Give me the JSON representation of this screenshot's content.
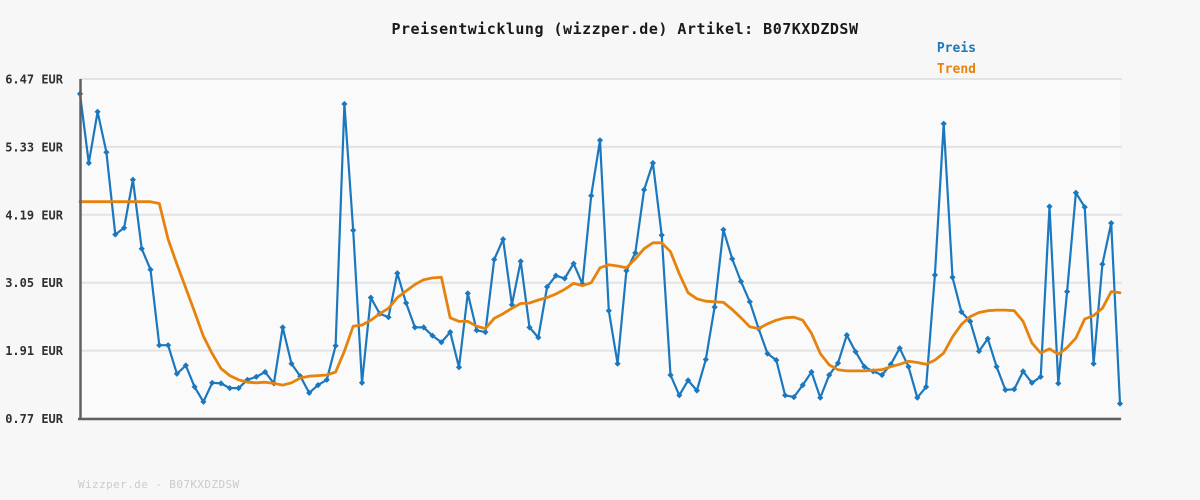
{
  "title": "Preisentwicklung (wizzper.de) Artikel: B07KXDZDSW",
  "watermark": "Wizzper.de - B07KXDZDSW",
  "legend": [
    {
      "label": "Preis",
      "color": "#1b78be"
    },
    {
      "label": "Trend",
      "color": "#e6830e"
    }
  ],
  "colors": {
    "background": "#f7f7f7",
    "plot_background": "#fafafa",
    "gridline": "#e3e3e3",
    "axis": "#606060",
    "price_line": "#1b78be",
    "trend_line": "#e6830e",
    "title_text": "#1a1a1a",
    "tick_text": "#303030",
    "watermark_text": "#cbcbcb"
  },
  "chart_data": {
    "type": "line",
    "title": "Preisentwicklung (wizzper.de) Artikel: B07KXDZDSW",
    "xlabel": "",
    "ylabel": "EUR",
    "grid": true,
    "legend_position": "top-right",
    "x_axis": {
      "tick_labels_visible": false,
      "num_points": 119
    },
    "y_axis": {
      "range": [
        0.77,
        6.47
      ],
      "ticks": [
        {
          "value": 6.47,
          "label": "6.47 EUR"
        },
        {
          "value": 5.33,
          "label": "5.33 EUR"
        },
        {
          "value": 4.19,
          "label": "4.19 EUR"
        },
        {
          "value": 3.05,
          "label": "3.05 EUR"
        },
        {
          "value": 1.91,
          "label": "1.91 EUR"
        },
        {
          "value": 0.77,
          "label": "0.77 EUR"
        }
      ]
    },
    "series": [
      {
        "name": "Preis",
        "color": "#1b78be",
        "marker": "diamond",
        "values": [
          6.22,
          5.06,
          5.92,
          5.24,
          3.86,
          3.97,
          4.78,
          3.62,
          3.27,
          2.0,
          2.0,
          1.52,
          1.66,
          1.3,
          1.05,
          1.37,
          1.36,
          1.28,
          1.28,
          1.42,
          1.47,
          1.55,
          1.36,
          2.3,
          1.69,
          1.48,
          1.2,
          1.33,
          1.42,
          1.99,
          6.05,
          3.93,
          1.37,
          2.8,
          2.53,
          2.47,
          3.21,
          2.71,
          2.3,
          2.3,
          2.16,
          2.05,
          2.22,
          1.63,
          2.87,
          2.25,
          2.22,
          3.44,
          3.78,
          2.68,
          3.41,
          2.3,
          2.13,
          2.98,
          3.17,
          3.12,
          3.37,
          3.03,
          4.51,
          5.44,
          2.58,
          1.69,
          3.25,
          3.55,
          4.61,
          5.06,
          3.85,
          1.5,
          1.16,
          1.41,
          1.24,
          1.76,
          2.64,
          3.94,
          3.45,
          3.07,
          2.73,
          2.28,
          1.86,
          1.75,
          1.16,
          1.13,
          1.33,
          1.55,
          1.12,
          1.5,
          1.7,
          2.17,
          1.89,
          1.64,
          1.56,
          1.5,
          1.68,
          1.95,
          1.64,
          1.12,
          1.3,
          3.18,
          5.72,
          3.14,
          2.56,
          2.4,
          1.9,
          2.11,
          1.64,
          1.25,
          1.26,
          1.56,
          1.37,
          1.47,
          4.33,
          1.36,
          2.9,
          4.56,
          4.32,
          1.69,
          3.36,
          4.05,
          1.02
        ]
      },
      {
        "name": "Trend",
        "color": "#e6830e",
        "marker": "none",
        "values": [
          4.41,
          4.41,
          4.41,
          4.41,
          4.41,
          4.41,
          4.41,
          4.41,
          4.41,
          4.38,
          3.78,
          3.36,
          2.96,
          2.56,
          2.15,
          1.86,
          1.61,
          1.49,
          1.42,
          1.38,
          1.37,
          1.38,
          1.36,
          1.33,
          1.37,
          1.45,
          1.48,
          1.49,
          1.5,
          1.55,
          1.9,
          2.32,
          2.34,
          2.42,
          2.53,
          2.62,
          2.8,
          2.91,
          3.02,
          3.1,
          3.13,
          3.14,
          2.46,
          2.4,
          2.4,
          2.32,
          2.28,
          2.45,
          2.53,
          2.62,
          2.7,
          2.71,
          2.76,
          2.8,
          2.86,
          2.94,
          3.04,
          3.0,
          3.05,
          3.3,
          3.35,
          3.33,
          3.3,
          3.45,
          3.62,
          3.72,
          3.72,
          3.57,
          3.2,
          2.88,
          2.78,
          2.74,
          2.73,
          2.72,
          2.6,
          2.46,
          2.31,
          2.28,
          2.36,
          2.42,
          2.46,
          2.47,
          2.42,
          2.2,
          1.86,
          1.67,
          1.59,
          1.57,
          1.57,
          1.57,
          1.58,
          1.59,
          1.64,
          1.68,
          1.73,
          1.71,
          1.68,
          1.75,
          1.87,
          2.14,
          2.35,
          2.48,
          2.55,
          2.58,
          2.59,
          2.59,
          2.58,
          2.4,
          2.04,
          1.87,
          1.94,
          1.85,
          1.96,
          2.12,
          2.44,
          2.5,
          2.62,
          2.9,
          2.88
        ]
      }
    ]
  }
}
